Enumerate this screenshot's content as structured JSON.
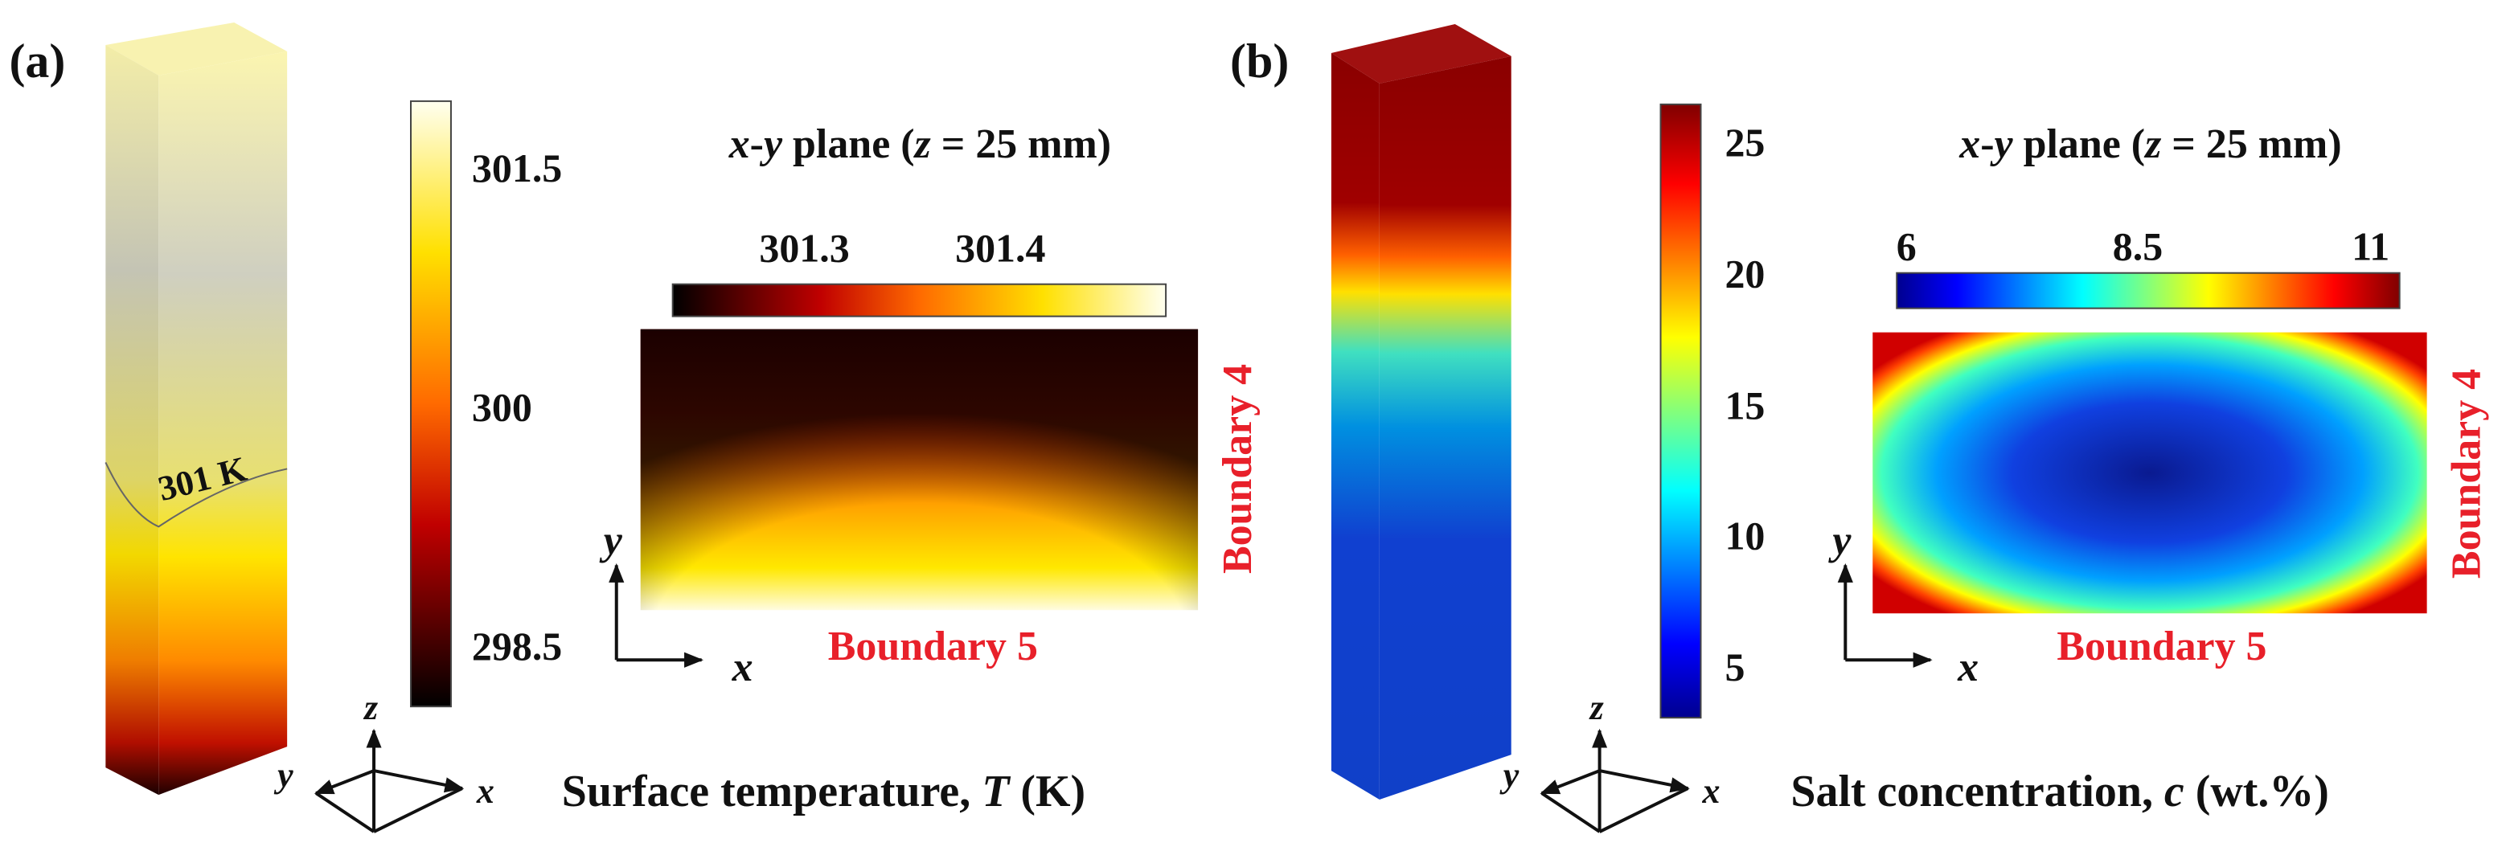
{
  "panels": [
    {
      "label": "(a)",
      "isotherm_label": "301 K",
      "colorbar_ticks": [
        301.5,
        300,
        298.5
      ],
      "plane_title": [
        "x",
        "-",
        "y",
        " plane (",
        "z",
        " = 25 mm)"
      ],
      "plane_colorbar_ticks": [
        301.3,
        301.4
      ],
      "boundary_right": "Boundary 4",
      "boundary_bottom": "Boundary 5",
      "axes_2d": [
        "x",
        "y"
      ],
      "axes_3d": [
        "x",
        "y",
        "z"
      ],
      "caption": [
        "Surface temperature, ",
        "T",
        " (K)"
      ]
    },
    {
      "label": "(b)",
      "colorbar_ticks": [
        25,
        20,
        15,
        10,
        5
      ],
      "plane_title": [
        "x",
        "-",
        "y",
        " plane (",
        "z",
        " = 25 mm)"
      ],
      "plane_colorbar_ticks": [
        6,
        8.5,
        11
      ],
      "boundary_right": "Boundary 4",
      "boundary_bottom": "Boundary 5",
      "axes_2d": [
        "x",
        "y"
      ],
      "axes_3d": [
        "x",
        "y",
        "z"
      ],
      "caption": [
        "Salt concentration, ",
        "c",
        " (wt.%)"
      ]
    }
  ]
}
